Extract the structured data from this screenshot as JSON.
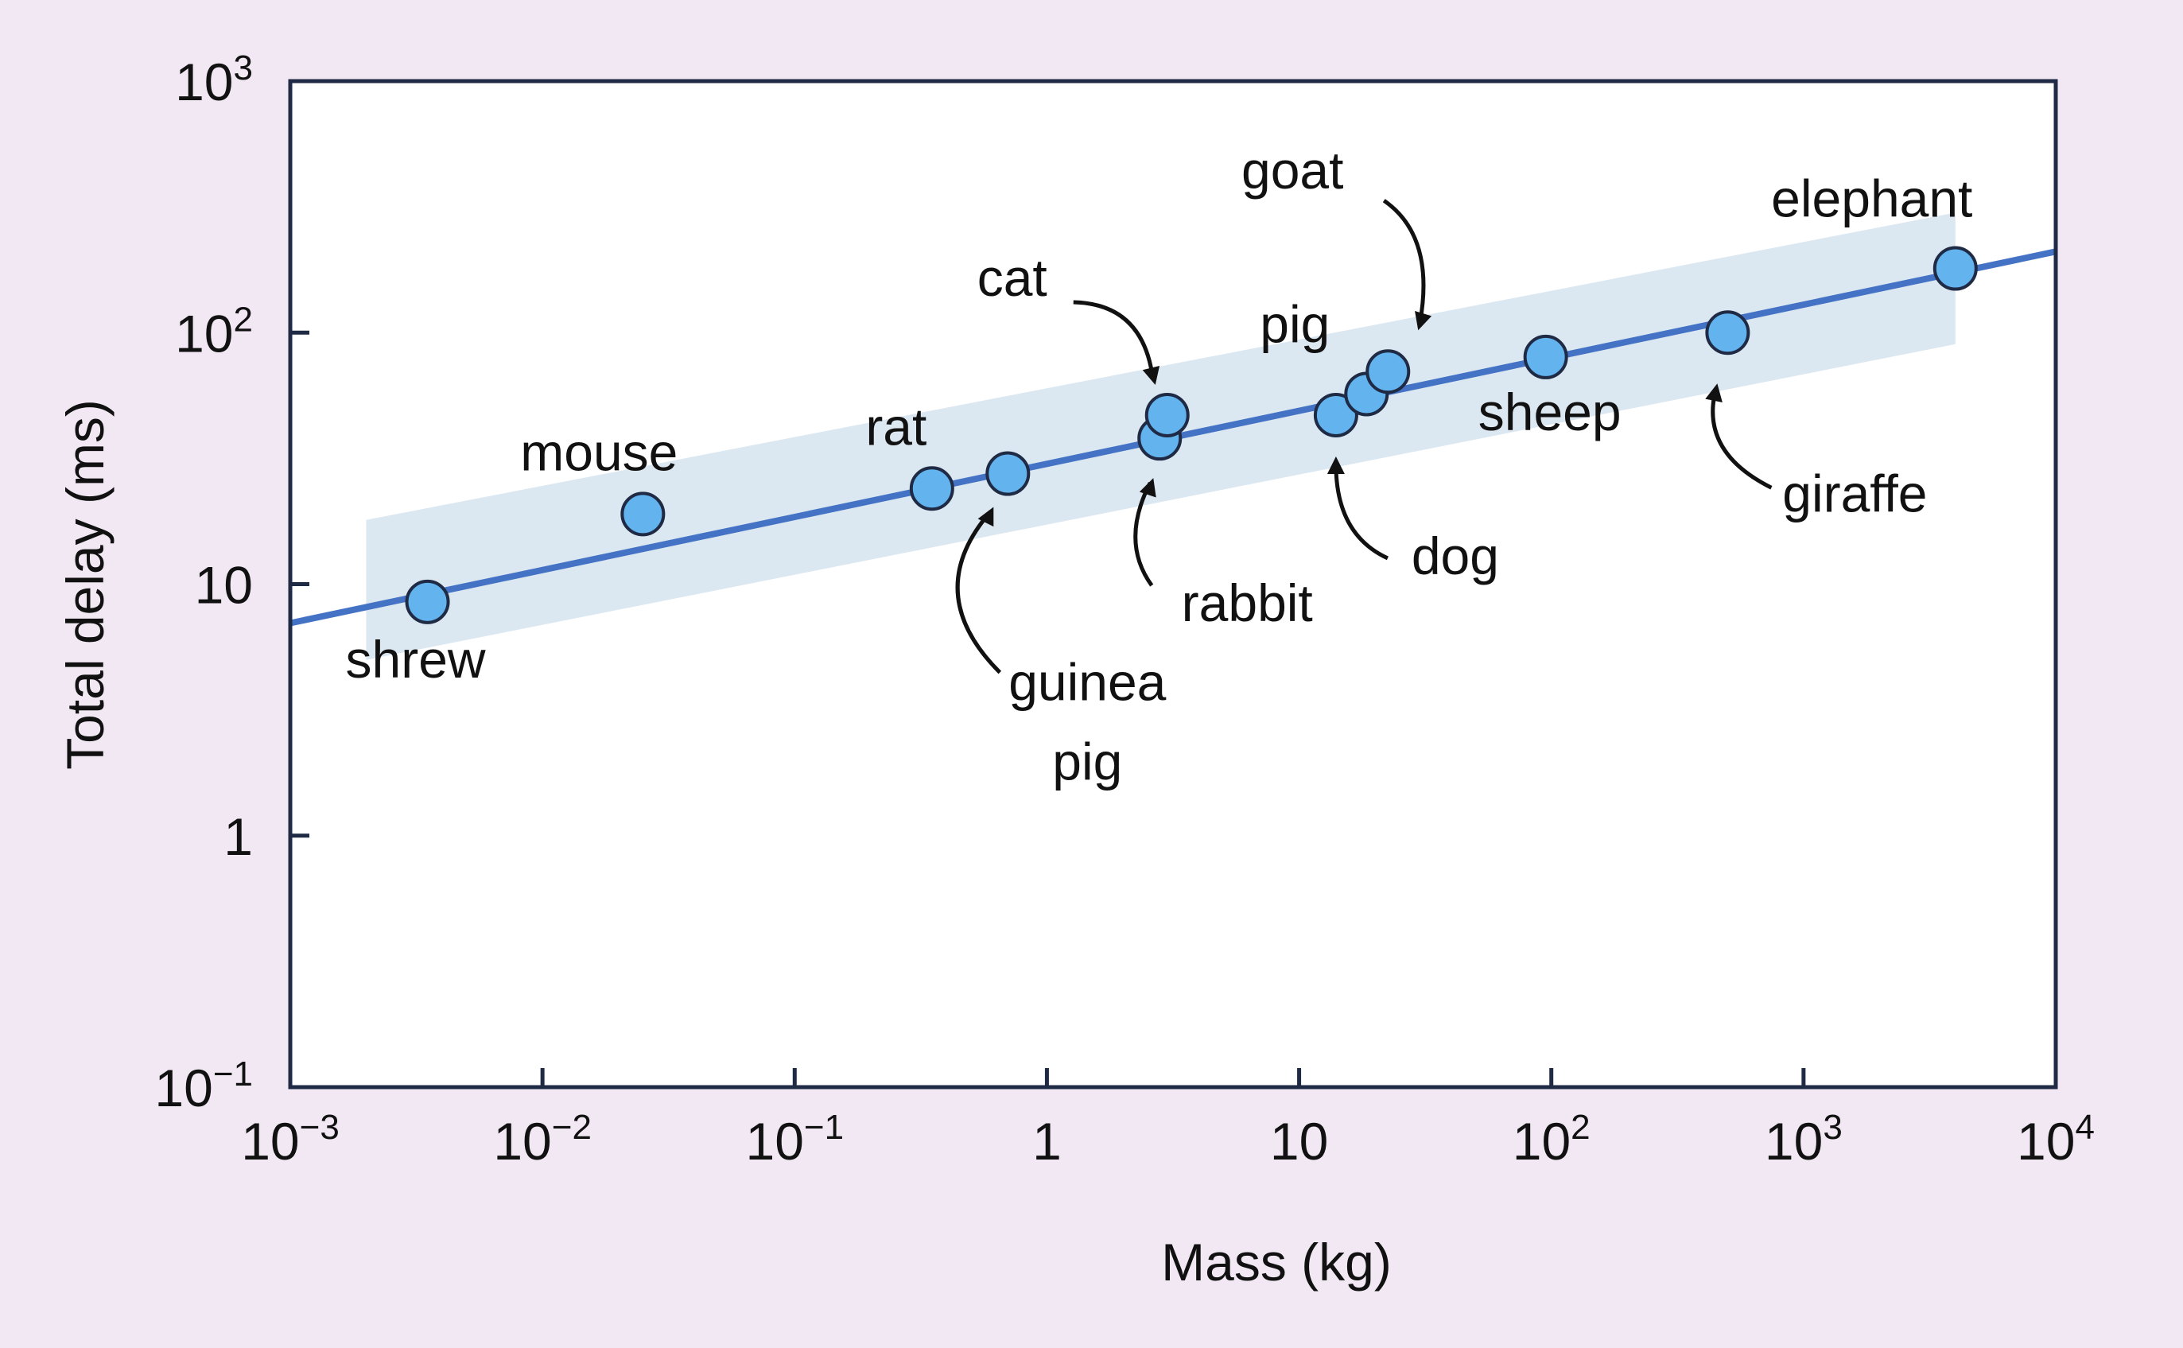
{
  "chart_data": {
    "type": "scatter",
    "scale": "log-log",
    "xlabel": "Mass (kg)",
    "ylabel": "Total delay (ms)",
    "xlim": [
      0.001,
      10000
    ],
    "ylim": [
      0.1,
      1000
    ],
    "x_ticks": [
      {
        "value": 0.001,
        "base": "10",
        "exp": "−3"
      },
      {
        "value": 0.01,
        "base": "10",
        "exp": "−2"
      },
      {
        "value": 0.1,
        "base": "10",
        "exp": "−1"
      },
      {
        "value": 1,
        "base": "1",
        "exp": ""
      },
      {
        "value": 10,
        "base": "10",
        "exp": ""
      },
      {
        "value": 100,
        "base": "10",
        "exp": "2"
      },
      {
        "value": 1000,
        "base": "10",
        "exp": "3"
      },
      {
        "value": 10000,
        "base": "10",
        "exp": "4"
      }
    ],
    "y_ticks": [
      {
        "value": 0.1,
        "base": "10",
        "exp": "−1"
      },
      {
        "value": 1,
        "base": "1",
        "exp": ""
      },
      {
        "value": 10,
        "base": "10",
        "exp": ""
      },
      {
        "value": 100,
        "base": "10",
        "exp": "2"
      },
      {
        "value": 1000,
        "base": "10",
        "exp": "3"
      }
    ],
    "fit_line": {
      "x": [
        0.001,
        10000
      ],
      "y": [
        7,
        210
      ]
    },
    "band": {
      "x": [
        0.002,
        4000
      ],
      "y_upper": [
        18,
        300
      ],
      "y_lower": [
        5,
        90
      ]
    },
    "points": [
      {
        "name": "shrew",
        "x": 0.0035,
        "y": 8.5
      },
      {
        "name": "mouse",
        "x": 0.025,
        "y": 19
      },
      {
        "name": "rat",
        "x": 0.35,
        "y": 24
      },
      {
        "name": "guinea pig",
        "x": 0.7,
        "y": 27.5
      },
      {
        "name": "rabbit",
        "x": 2.8,
        "y": 38
      },
      {
        "name": "cat",
        "x": 3.0,
        "y": 47
      },
      {
        "name": "dog",
        "x": 14,
        "y": 47
      },
      {
        "name": "pig",
        "x": 18.5,
        "y": 57
      },
      {
        "name": "goat",
        "x": 22.5,
        "y": 70
      },
      {
        "name": "sheep",
        "x": 95,
        "y": 80
      },
      {
        "name": "giraffe",
        "x": 500,
        "y": 100
      },
      {
        "name": "elephant",
        "x": 4000,
        "y": 180
      }
    ],
    "colors": {
      "background": "#f2e8f4",
      "plot_bg": "#ffffff",
      "frame": "#1f2a44",
      "line": "#4472c4",
      "band": "#dbe7f1",
      "point_fill": "#63b3ef",
      "point_edge": "#1f2a44"
    }
  }
}
